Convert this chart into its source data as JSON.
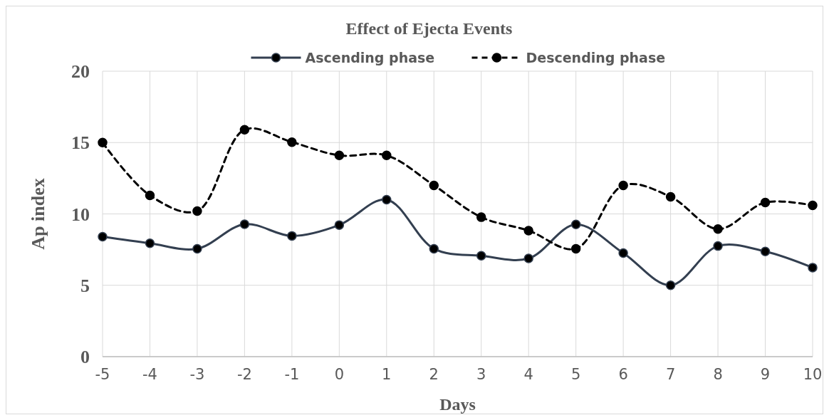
{
  "chart_data": {
    "type": "line",
    "title": "Effect of Ejecta Events",
    "xlabel": "Days",
    "ylabel": "Ap index",
    "x": [
      -5,
      -4,
      -3,
      -2,
      -1,
      0,
      1,
      2,
      3,
      4,
      5,
      6,
      7,
      8,
      9,
      10
    ],
    "xlim": [
      -5,
      10
    ],
    "xticks": [
      -5,
      -4,
      -3,
      -2,
      -1,
      0,
      1,
      2,
      3,
      4,
      5,
      6,
      7,
      8,
      9,
      10
    ],
    "ylim": [
      0,
      20
    ],
    "yticks": [
      0,
      5,
      10,
      15,
      20
    ],
    "grid": true,
    "legend": "top",
    "marker": "circle",
    "series": [
      {
        "name": "Ascending phase",
        "color": "#333f50",
        "line_style": "solid",
        "values": [
          8.4,
          7.94,
          7.56,
          9.28,
          8.46,
          9.22,
          11.0,
          7.56,
          7.07,
          6.88,
          9.26,
          7.26,
          5.0,
          7.75,
          7.37,
          6.24
        ]
      },
      {
        "name": "Descending phase",
        "color": "#000000",
        "line_style": "dashed",
        "values": [
          15.0,
          11.3,
          10.2,
          15.9,
          15.03,
          14.1,
          14.1,
          12.0,
          9.77,
          8.83,
          7.56,
          12.0,
          11.2,
          8.94,
          10.8,
          10.6
        ]
      }
    ]
  }
}
